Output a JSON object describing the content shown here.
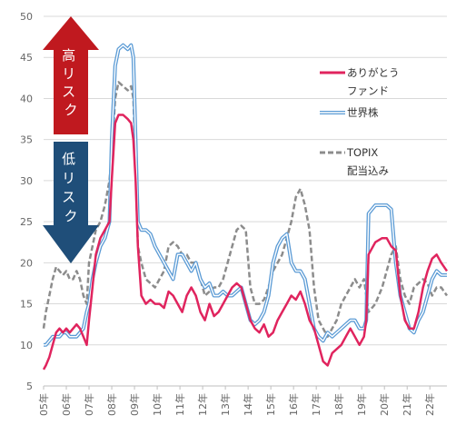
{
  "chart_data": {
    "type": "line",
    "ylim": [
      5,
      50
    ],
    "yticks": [
      "50",
      "45",
      "40",
      "35",
      "30",
      "25",
      "20",
      "15",
      "10",
      "5"
    ],
    "xticks": [
      "05年",
      "06年",
      "07年",
      "08年",
      "09年",
      "10年",
      "11年",
      "12年",
      "13年",
      "14年",
      "15年",
      "16年",
      "17年",
      "18年",
      "19年",
      "20年",
      "21年",
      "22年"
    ],
    "xlim": [
      2005.0,
      2022.75
    ],
    "arrows": {
      "high": {
        "text": "高リスク",
        "color": "#c0191f"
      },
      "low": {
        "text": "低リスク",
        "color": "#1f4e79"
      }
    },
    "legend": [
      {
        "key": "arigatou",
        "lines": [
          "ありがとう",
          "ファンド"
        ]
      },
      {
        "key": "sekai",
        "lines": [
          "世界株"
        ]
      },
      {
        "key": "topix",
        "lines": [
          "TOPIX",
          "配当込み"
        ]
      }
    ],
    "colors": {
      "arigatou": "#e0245e",
      "sekai": "#5b9bd5",
      "topix": "#8c8c8c"
    },
    "series": [
      {
        "key": "arigatou",
        "x": [
          2005.0,
          2005.1,
          2005.25,
          2005.4,
          2005.55,
          2005.7,
          2005.85,
          2006.0,
          2006.15,
          2006.3,
          2006.45,
          2006.6,
          2006.75,
          2006.9,
          2007.0,
          2007.15,
          2007.3,
          2007.5,
          2007.7,
          2007.9,
          2008.0,
          2008.15,
          2008.3,
          2008.5,
          2008.7,
          2008.85,
          2008.95,
          2009.05,
          2009.15,
          2009.3,
          2009.5,
          2009.7,
          2009.9,
          2010.1,
          2010.3,
          2010.5,
          2010.7,
          2010.9,
          2011.1,
          2011.3,
          2011.5,
          2011.7,
          2011.9,
          2012.1,
          2012.3,
          2012.5,
          2012.7,
          2012.9,
          2013.1,
          2013.3,
          2013.5,
          2013.7,
          2013.9,
          2014.1,
          2014.3,
          2014.5,
          2014.7,
          2014.9,
          2015.1,
          2015.3,
          2015.5,
          2015.7,
          2015.9,
          2016.1,
          2016.3,
          2016.5,
          2016.7,
          2016.9,
          2017.1,
          2017.3,
          2017.5,
          2017.7,
          2017.9,
          2018.1,
          2018.3,
          2018.5,
          2018.7,
          2018.9,
          2019.1,
          2019.2,
          2019.3,
          2019.6,
          2019.9,
          2020.1,
          2020.3,
          2020.5,
          2020.7,
          2020.9,
          2021.1,
          2021.3,
          2021.5,
          2021.7,
          2021.9,
          2022.1,
          2022.3,
          2022.5,
          2022.75
        ],
        "values": [
          7,
          7.5,
          8.5,
          10,
          11.5,
          12,
          11.5,
          12,
          11.5,
          12,
          12.5,
          12,
          11,
          10,
          13,
          17,
          21,
          23,
          24,
          25,
          30,
          37,
          38,
          38,
          37.5,
          37,
          35,
          30,
          22,
          16,
          15,
          15.5,
          15,
          15,
          14.5,
          16.5,
          16,
          15,
          14,
          16,
          17,
          16,
          14,
          13,
          15,
          13.5,
          14,
          15,
          16,
          17,
          17.5,
          17,
          15,
          13,
          12,
          11.5,
          12.5,
          11,
          11.5,
          13,
          14,
          15,
          16,
          15.5,
          16.5,
          15,
          13,
          12,
          10,
          8,
          7.5,
          9,
          9.5,
          10,
          11,
          12,
          11,
          10,
          11,
          13,
          21,
          22.5,
          23,
          23,
          22,
          21.5,
          16,
          13,
          12,
          12,
          14,
          17,
          19,
          20.5,
          21,
          20,
          19
        ]
      },
      {
        "key": "sekai",
        "x": [
          2005.0,
          2005.1,
          2005.25,
          2005.4,
          2005.55,
          2005.7,
          2005.85,
          2006.0,
          2006.15,
          2006.3,
          2006.45,
          2006.6,
          2006.75,
          2006.9,
          2007.0,
          2007.15,
          2007.3,
          2007.5,
          2007.7,
          2007.9,
          2008.0,
          2008.15,
          2008.3,
          2008.5,
          2008.7,
          2008.85,
          2008.95,
          2009.05,
          2009.15,
          2009.3,
          2009.5,
          2009.7,
          2009.9,
          2010.1,
          2010.3,
          2010.5,
          2010.7,
          2010.9,
          2011.1,
          2011.3,
          2011.5,
          2011.7,
          2011.9,
          2012.1,
          2012.3,
          2012.5,
          2012.7,
          2012.9,
          2013.1,
          2013.3,
          2013.5,
          2013.7,
          2013.9,
          2014.1,
          2014.3,
          2014.5,
          2014.7,
          2014.9,
          2015.1,
          2015.3,
          2015.5,
          2015.7,
          2015.9,
          2016.1,
          2016.3,
          2016.5,
          2016.7,
          2016.9,
          2017.1,
          2017.3,
          2017.5,
          2017.7,
          2017.9,
          2018.1,
          2018.3,
          2018.5,
          2018.7,
          2018.9,
          2019.1,
          2019.2,
          2019.3,
          2019.6,
          2019.9,
          2020.1,
          2020.3,
          2020.5,
          2020.7,
          2020.9,
          2021.1,
          2021.3,
          2021.5,
          2021.7,
          2021.9,
          2022.1,
          2022.3,
          2022.5,
          2022.75
        ],
        "values": [
          10,
          10,
          10.5,
          11,
          11,
          11,
          11.5,
          11.5,
          11,
          11,
          11,
          11.5,
          12,
          14,
          15,
          18,
          20,
          22,
          23,
          25,
          35,
          44,
          46,
          46.5,
          46,
          46.5,
          45,
          35,
          25,
          24,
          24,
          23.5,
          22,
          21,
          20,
          19,
          18,
          21,
          21,
          20,
          19,
          20,
          18,
          17,
          17.5,
          16,
          16,
          16.5,
          16,
          16,
          16.5,
          17,
          15,
          13,
          12.5,
          13,
          14,
          16,
          20,
          22,
          23,
          23.5,
          20,
          19,
          19,
          18,
          15,
          12,
          11,
          10.5,
          11.5,
          11,
          11.5,
          12,
          12.5,
          13,
          13,
          12,
          12,
          13,
          26,
          27,
          27,
          27,
          26.5,
          20,
          16,
          14,
          12,
          11.5,
          13,
          14,
          16,
          18,
          19,
          18.5,
          18.5
        ]
      },
      {
        "key": "topix",
        "x": [
          2005.0,
          2005.1,
          2005.25,
          2005.4,
          2005.55,
          2005.7,
          2005.85,
          2006.0,
          2006.15,
          2006.3,
          2006.45,
          2006.6,
          2006.75,
          2006.9,
          2007.0,
          2007.15,
          2007.3,
          2007.5,
          2007.7,
          2007.9,
          2008.0,
          2008.15,
          2008.3,
          2008.5,
          2008.7,
          2008.85,
          2008.95,
          2009.05,
          2009.15,
          2009.3,
          2009.5,
          2009.7,
          2009.9,
          2010.1,
          2010.3,
          2010.5,
          2010.7,
          2010.9,
          2011.1,
          2011.3,
          2011.5,
          2011.7,
          2011.9,
          2012.1,
          2012.3,
          2012.5,
          2012.7,
          2012.9,
          2013.1,
          2013.3,
          2013.5,
          2013.7,
          2013.9,
          2014.1,
          2014.3,
          2014.5,
          2014.7,
          2014.9,
          2015.1,
          2015.3,
          2015.5,
          2015.7,
          2015.9,
          2016.1,
          2016.3,
          2016.5,
          2016.7,
          2016.9,
          2017.1,
          2017.3,
          2017.5,
          2017.7,
          2017.9,
          2018.1,
          2018.3,
          2018.5,
          2018.7,
          2018.9,
          2019.1,
          2019.2,
          2019.3,
          2019.6,
          2019.9,
          2020.1,
          2020.3,
          2020.5,
          2020.7,
          2020.9,
          2021.1,
          2021.3,
          2021.5,
          2021.7,
          2021.9,
          2022.1,
          2022.3,
          2022.5,
          2022.75
        ],
        "values": [
          12,
          14,
          16,
          18,
          19.5,
          19,
          18.5,
          19,
          18,
          18,
          19,
          18,
          16,
          15,
          20,
          22,
          24,
          25,
          27,
          30,
          33,
          40,
          42,
          41.5,
          41,
          41.5,
          40,
          32,
          22,
          20,
          18,
          17.5,
          17,
          18,
          19,
          22,
          22.5,
          22,
          21,
          21,
          20,
          20,
          18,
          16,
          16.5,
          17,
          17,
          18,
          20,
          22,
          24,
          24.5,
          24,
          17,
          15,
          15,
          15.5,
          17,
          19,
          20,
          21,
          23,
          25,
          28,
          29,
          27,
          24,
          17,
          13,
          12,
          11,
          12,
          13,
          15,
          16,
          17,
          18,
          17,
          18,
          16,
          14,
          15,
          17,
          19,
          21,
          22,
          18,
          16,
          15,
          17,
          17.5,
          18,
          17.5,
          16,
          17,
          17,
          16
        ]
      }
    ]
  }
}
